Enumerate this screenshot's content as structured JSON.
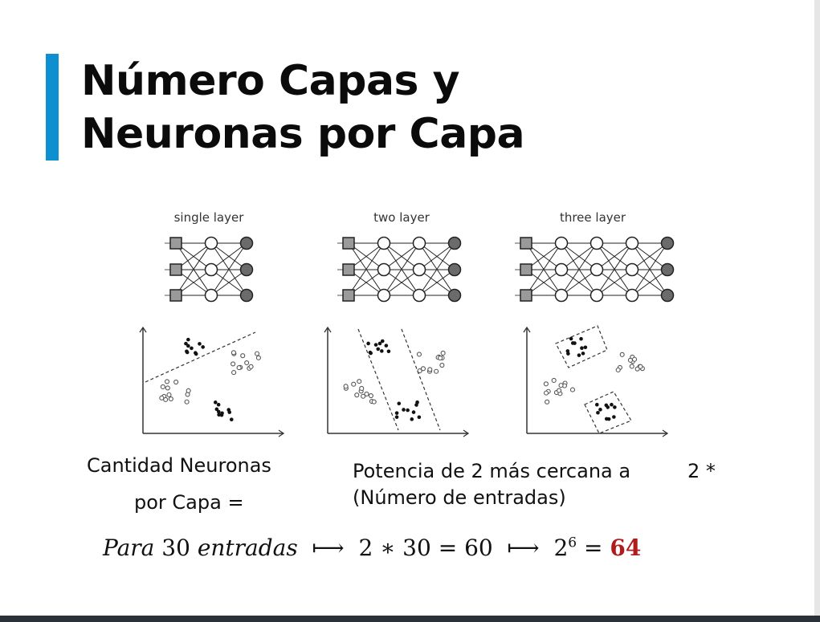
{
  "slide": {
    "title_line1": "Número Capas y",
    "title_line2": "Neuronas por Capa",
    "accent_color": "#0d8fd0"
  },
  "panels": [
    {
      "label": "single layer",
      "hidden_layers": 1
    },
    {
      "label": "two layer",
      "hidden_layers": 2
    },
    {
      "label": "three layer",
      "hidden_layers": 3
    }
  ],
  "caption": {
    "left_line1": "Cantidad Neuronas",
    "left_line2": "por Capa =",
    "right_line1": "Potencia de 2 más cercana a",
    "right_star": "2 *",
    "right_line2": "(Número de entradas)"
  },
  "formula": {
    "para": "Para",
    "n_inputs": "30",
    "entradas": "entradas",
    "arrow1": "⟼",
    "lhs": "2 ∗ 30",
    "eq1": "=",
    "product": "60",
    "arrow2": "⟼",
    "base": "2",
    "exponent": "6",
    "eq2": "=",
    "result": "64",
    "result_color": "#b01c1c"
  }
}
